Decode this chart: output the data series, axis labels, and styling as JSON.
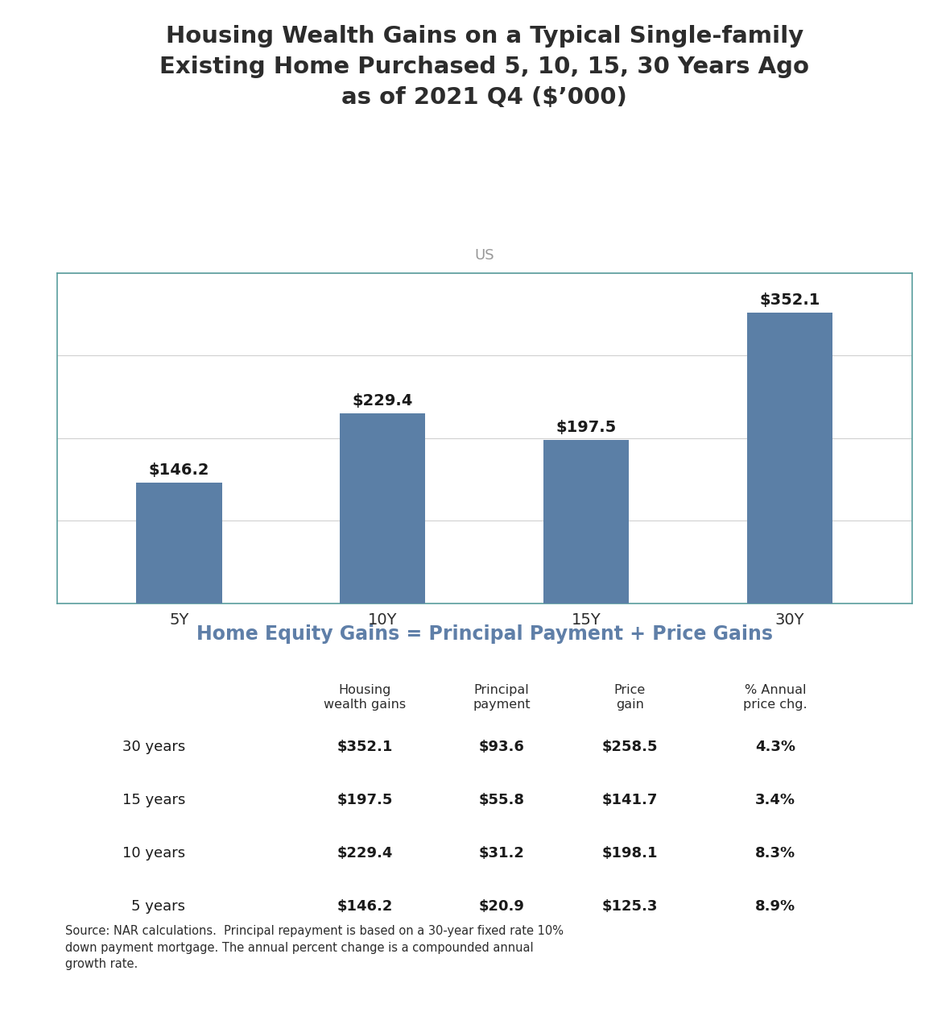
{
  "title": "Housing Wealth Gains on a Typical Single-family\nExisting Home Purchased 5, 10, 15, 30 Years Ago\nas of 2021 Q4 ($’000)",
  "subtitle": "US",
  "bar_categories": [
    "5Y",
    "10Y",
    "15Y",
    "30Y"
  ],
  "bar_values": [
    146.2,
    229.4,
    197.5,
    352.1
  ],
  "bar_color": "#5b7fa6",
  "bar_labels": [
    "$146.2",
    "$229.4",
    "$197.5",
    "$352.1"
  ],
  "ylim": [
    0,
    400
  ],
  "yticks": [
    0,
    100,
    200,
    300,
    400
  ],
  "grid_color": "#d0d0d0",
  "chart_border_color": "#5a9e9e",
  "title_color": "#2c2c2c",
  "subtitle_color": "#999999",
  "xlabel_color": "#2c2c2c",
  "bar_label_color": "#1a1a1a",
  "section_title": "Home Equity Gains = Principal Payment + Price Gains",
  "section_title_color": "#5f7fa8",
  "table_headers": [
    "Housing\nwealth gains",
    "Principal\npayment",
    "Price\ngain",
    "% Annual\nprice chg."
  ],
  "table_rows": [
    [
      "30 years",
      "$352.1",
      "$93.6",
      "$258.5",
      "4.3%"
    ],
    [
      "15 years",
      "$197.5",
      "$55.8",
      "$141.7",
      "3.4%"
    ],
    [
      "10 years",
      "$229.4",
      "$31.2",
      "$198.1",
      "8.3%"
    ],
    [
      "5 years",
      "$146.2",
      "$20.9",
      "$125.3",
      "8.9%"
    ]
  ],
  "source_text": "Source: NAR calculations.  Principal repayment is based on a 30-year fixed rate 10%\ndown payment mortgage. The annual percent change is a compounded annual\ngrowth rate.",
  "bg_color": "#ffffff",
  "title_fontsize": 21,
  "subtitle_fontsize": 13,
  "bar_label_fontsize": 14,
  "xtick_fontsize": 14,
  "section_title_fontsize": 17,
  "table_header_fontsize": 11.5,
  "table_data_fontsize": 13,
  "table_row_label_fontsize": 13,
  "source_fontsize": 10.5
}
